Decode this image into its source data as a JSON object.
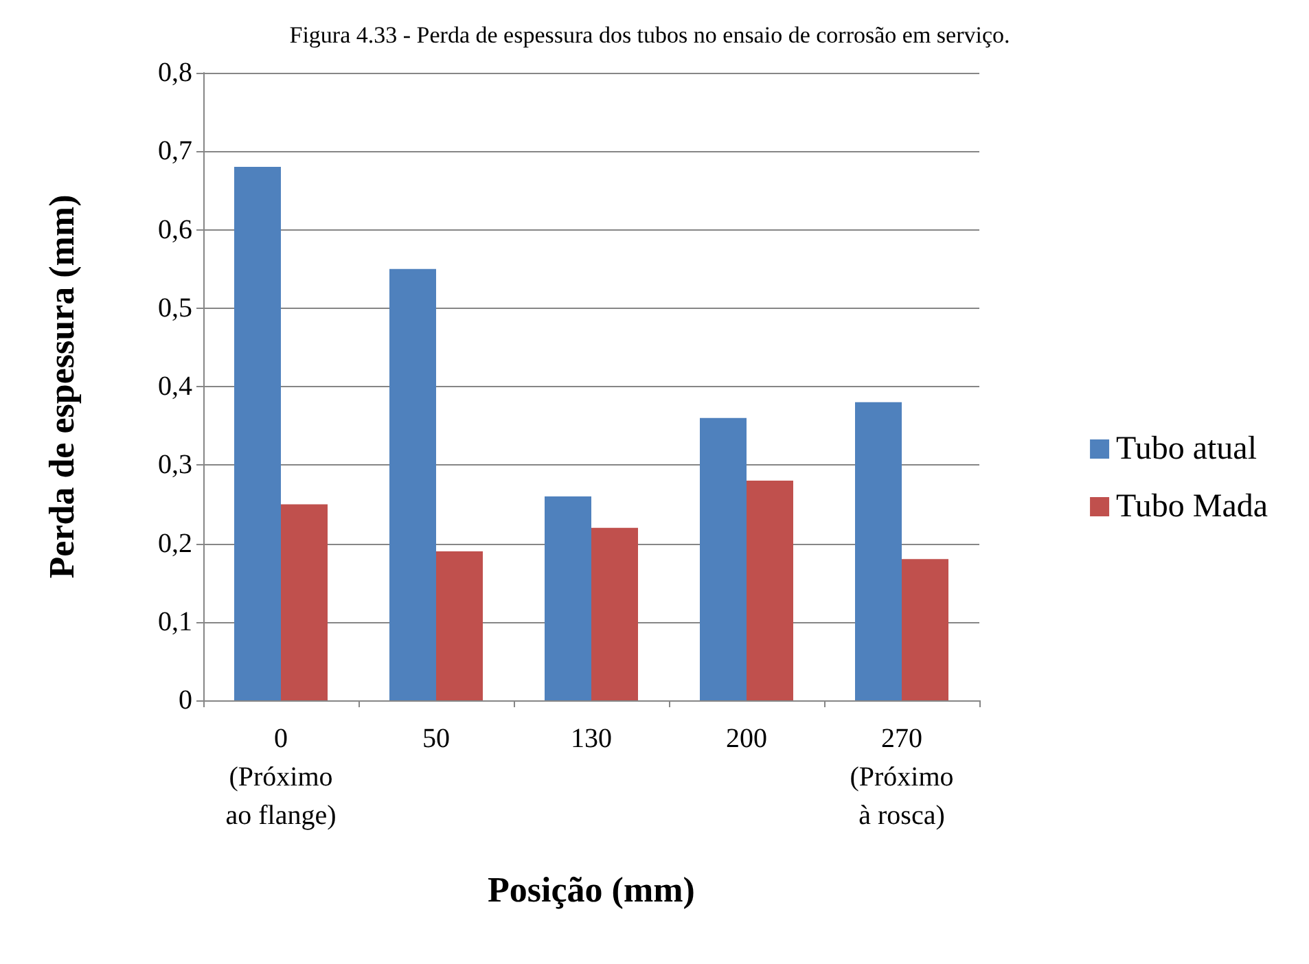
{
  "chart_data": {
    "type": "bar",
    "title": "Figura 4.33 - Perda de espessura dos tubos no ensaio de corrosão em serviço.",
    "xlabel": "Posição (mm)",
    "ylabel": "Perda de espessura (mm)",
    "categories": [
      "0\n(Próximo\nao flange)",
      "50",
      "130",
      "200",
      "270\n(Próximo\nà rosca)"
    ],
    "series": [
      {
        "name": "Tubo atual",
        "color": "#4f81bd",
        "values": [
          0.68,
          0.55,
          0.26,
          0.36,
          0.38
        ]
      },
      {
        "name": "Tubo Mada",
        "color": "#c0504d",
        "values": [
          0.25,
          0.19,
          0.22,
          0.28,
          0.18
        ]
      }
    ],
    "ylim": [
      0,
      0.8
    ],
    "yticks": [
      {
        "value": 0,
        "label": "0"
      },
      {
        "value": 0.1,
        "label": "0,1"
      },
      {
        "value": 0.2,
        "label": "0,2"
      },
      {
        "value": 0.3,
        "label": "0,3"
      },
      {
        "value": 0.4,
        "label": "0,4"
      },
      {
        "value": 0.5,
        "label": "0,5"
      },
      {
        "value": 0.6,
        "label": "0,6"
      },
      {
        "value": 0.7,
        "label": "0,7"
      },
      {
        "value": 0.8,
        "label": "0,8"
      }
    ],
    "grid": "y",
    "legend": "right"
  }
}
